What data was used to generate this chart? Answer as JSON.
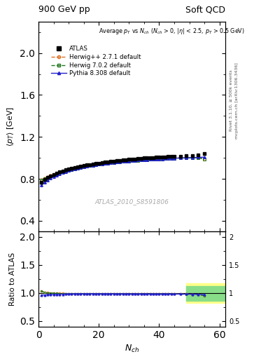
{
  "title_left": "900 GeV pp",
  "title_right": "Soft QCD",
  "annotation": "ATLAS_2010_S8591806",
  "ylabel_main": "$\\langle p_T \\rangle$ [GeV]",
  "ylabel_ratio": "Ratio to ATLAS",
  "xlabel": "$N_{ch}$",
  "ylim_main": [
    0.3,
    2.3
  ],
  "ylim_ratio": [
    0.4,
    2.1
  ],
  "xlim": [
    0,
    62
  ],
  "atlas_color": "#000000",
  "herwig271_color": "#e07020",
  "herwig702_color": "#207820",
  "pythia_color": "#2020cc",
  "atlas_x": [
    1,
    2,
    3,
    4,
    5,
    6,
    7,
    8,
    9,
    10,
    11,
    12,
    13,
    14,
    15,
    16,
    17,
    18,
    19,
    20,
    21,
    22,
    23,
    24,
    25,
    26,
    27,
    28,
    29,
    30,
    31,
    32,
    33,
    34,
    35,
    36,
    37,
    38,
    39,
    40,
    41,
    42,
    43,
    44,
    45,
    47,
    49,
    51,
    53,
    55
  ],
  "atlas_y": [
    0.766,
    0.796,
    0.814,
    0.829,
    0.843,
    0.855,
    0.866,
    0.876,
    0.885,
    0.893,
    0.9,
    0.907,
    0.914,
    0.92,
    0.926,
    0.932,
    0.937,
    0.942,
    0.947,
    0.951,
    0.955,
    0.959,
    0.963,
    0.967,
    0.97,
    0.974,
    0.977,
    0.98,
    0.983,
    0.986,
    0.989,
    0.991,
    0.994,
    0.996,
    0.998,
    1.0,
    1.002,
    1.004,
    1.006,
    1.007,
    1.009,
    1.01,
    1.012,
    1.013,
    1.014,
    1.017,
    1.02,
    1.023,
    1.026,
    1.04
  ],
  "herwig271_x": [
    1,
    2,
    3,
    4,
    5,
    6,
    7,
    8,
    9,
    10,
    11,
    12,
    13,
    14,
    15,
    16,
    17,
    18,
    19,
    20,
    21,
    22,
    23,
    24,
    25,
    26,
    27,
    28,
    29,
    30,
    31,
    32,
    33,
    34,
    35,
    36,
    37,
    38,
    39,
    40,
    41,
    42,
    43,
    44,
    45,
    47,
    49,
    51,
    53,
    55
  ],
  "herwig271_y": [
    0.793,
    0.807,
    0.82,
    0.831,
    0.842,
    0.852,
    0.861,
    0.87,
    0.878,
    0.886,
    0.893,
    0.899,
    0.905,
    0.911,
    0.917,
    0.922,
    0.927,
    0.932,
    0.936,
    0.94,
    0.944,
    0.948,
    0.952,
    0.955,
    0.958,
    0.961,
    0.964,
    0.967,
    0.97,
    0.972,
    0.975,
    0.977,
    0.979,
    0.981,
    0.983,
    0.985,
    0.987,
    0.988,
    0.99,
    0.991,
    0.993,
    0.994,
    0.995,
    0.997,
    0.998,
    1.0,
    1.001,
    1.002,
    1.003,
    0.99
  ],
  "herwig702_x": [
    1,
    2,
    3,
    4,
    5,
    6,
    7,
    8,
    9,
    10,
    11,
    12,
    13,
    14,
    15,
    16,
    17,
    18,
    19,
    20,
    21,
    22,
    23,
    24,
    25,
    26,
    27,
    28,
    29,
    30,
    31,
    32,
    33,
    34,
    35,
    36,
    37,
    38,
    39,
    40,
    41,
    42,
    43,
    44,
    45,
    47,
    49,
    51,
    53,
    55
  ],
  "herwig702_y": [
    0.79,
    0.804,
    0.817,
    0.828,
    0.839,
    0.849,
    0.858,
    0.867,
    0.875,
    0.883,
    0.89,
    0.897,
    0.903,
    0.909,
    0.915,
    0.92,
    0.925,
    0.93,
    0.934,
    0.938,
    0.942,
    0.946,
    0.95,
    0.953,
    0.956,
    0.959,
    0.962,
    0.965,
    0.968,
    0.97,
    0.973,
    0.975,
    0.977,
    0.979,
    0.981,
    0.983,
    0.985,
    0.986,
    0.988,
    0.989,
    0.991,
    0.992,
    0.993,
    0.995,
    0.996,
    0.998,
    0.999,
    1.0,
    1.001,
    0.988
  ],
  "pythia_x": [
    1,
    2,
    3,
    4,
    5,
    6,
    7,
    8,
    9,
    10,
    11,
    12,
    13,
    14,
    15,
    16,
    17,
    18,
    19,
    20,
    21,
    22,
    23,
    24,
    25,
    26,
    27,
    28,
    29,
    30,
    31,
    32,
    33,
    34,
    35,
    36,
    37,
    38,
    39,
    40,
    41,
    42,
    43,
    44,
    45,
    47,
    49,
    51,
    53,
    55
  ],
  "pythia_y": [
    0.738,
    0.768,
    0.789,
    0.807,
    0.822,
    0.836,
    0.848,
    0.859,
    0.869,
    0.878,
    0.887,
    0.894,
    0.901,
    0.908,
    0.914,
    0.92,
    0.925,
    0.93,
    0.935,
    0.939,
    0.943,
    0.947,
    0.951,
    0.954,
    0.957,
    0.96,
    0.963,
    0.966,
    0.969,
    0.971,
    0.974,
    0.976,
    0.978,
    0.98,
    0.982,
    0.984,
    0.985,
    0.987,
    0.989,
    0.99,
    0.991,
    0.993,
    0.994,
    0.995,
    0.997,
    0.999,
    1.001,
    1.003,
    1.005,
    1.007
  ],
  "ratio_herwig271_y": [
    1.035,
    1.014,
    1.007,
    1.002,
    0.999,
    0.997,
    0.994,
    0.993,
    0.991,
    0.99,
    0.99,
    0.989,
    0.989,
    0.988,
    0.988,
    0.988,
    0.988,
    0.988,
    0.988,
    0.988,
    0.988,
    0.988,
    0.988,
    0.988,
    0.988,
    0.987,
    0.987,
    0.987,
    0.987,
    0.986,
    0.986,
    0.986,
    0.985,
    0.985,
    0.985,
    0.985,
    0.985,
    0.984,
    0.984,
    0.984,
    0.984,
    0.984,
    0.983,
    0.984,
    0.984,
    0.983,
    0.981,
    0.979,
    0.977,
    0.952
  ],
  "ratio_herwig702_y": [
    1.031,
    1.01,
    1.004,
    0.999,
    0.996,
    0.993,
    0.991,
    0.99,
    0.988,
    0.988,
    0.988,
    0.988,
    0.988,
    0.988,
    0.988,
    0.987,
    0.987,
    0.987,
    0.986,
    0.986,
    0.986,
    0.985,
    0.985,
    0.985,
    0.985,
    0.984,
    0.984,
    0.984,
    0.984,
    0.983,
    0.983,
    0.983,
    0.983,
    0.983,
    0.983,
    0.983,
    0.983,
    0.982,
    0.982,
    0.982,
    0.982,
    0.982,
    0.981,
    0.982,
    0.982,
    0.981,
    0.979,
    0.977,
    0.975,
    0.95
  ],
  "ratio_pythia_y": [
    0.964,
    0.965,
    0.97,
    0.974,
    0.975,
    0.977,
    0.978,
    0.98,
    0.981,
    0.982,
    0.985,
    0.986,
    0.987,
    0.987,
    0.987,
    0.987,
    0.988,
    0.988,
    0.987,
    0.988,
    0.988,
    0.988,
    0.988,
    0.987,
    0.987,
    0.986,
    0.986,
    0.986,
    0.986,
    0.985,
    0.985,
    0.985,
    0.984,
    0.984,
    0.984,
    0.984,
    0.983,
    0.983,
    0.983,
    0.983,
    0.982,
    0.983,
    0.982,
    0.982,
    0.983,
    0.982,
    0.981,
    0.98,
    0.979,
    0.969
  ]
}
